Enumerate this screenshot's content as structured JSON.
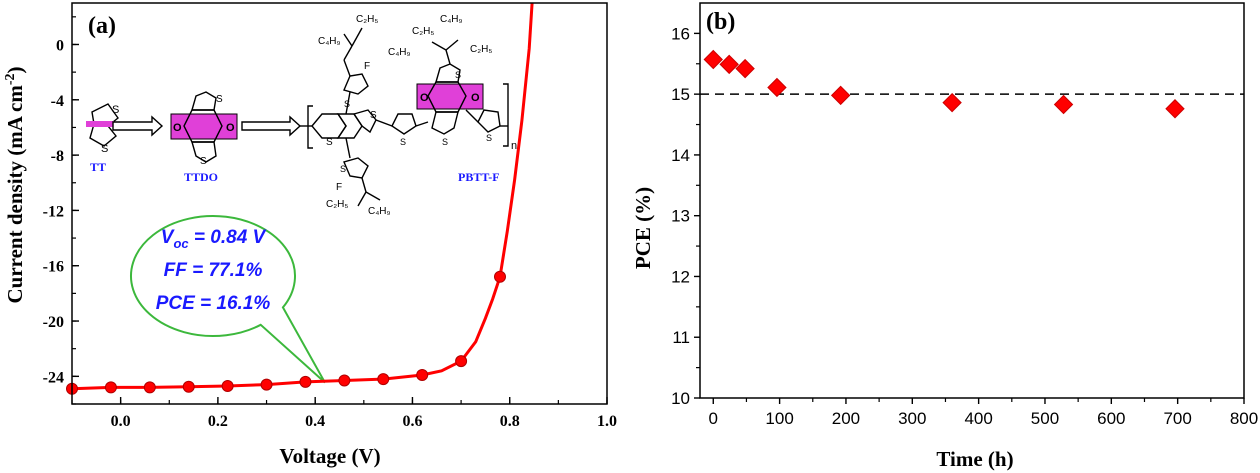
{
  "chart_data": [
    {
      "type": "line",
      "panel_label": "(a)",
      "xlabel": "Voltage (V)",
      "ylabel": "Current density (mA cm⁻²)",
      "ylabel_main": "Current density (mA cm",
      "ylabel_sup": "-2",
      "ylabel_close": ")",
      "xlim": [
        -0.1,
        1.0
      ],
      "ylim": [
        -26,
        3
      ],
      "xticks": [
        0.0,
        0.2,
        0.4,
        0.6,
        0.8,
        1.0
      ],
      "xtick_labels": [
        "0.0",
        "0.2",
        "0.4",
        "0.6",
        "0.8",
        "1.0"
      ],
      "yticks": [
        0,
        -4,
        -8,
        -12,
        -16,
        -20,
        -24
      ],
      "ytick_labels": [
        "0",
        "-4",
        "-8",
        "-12",
        "-16",
        "-20",
        "-24"
      ],
      "series": [
        {
          "curve_x": [
            -0.1,
            -0.02,
            0.06,
            0.14,
            0.22,
            0.3,
            0.38,
            0.46,
            0.54,
            0.62,
            0.66,
            0.7,
            0.73,
            0.75,
            0.765,
            0.78,
            0.795,
            0.81,
            0.825,
            0.84,
            0.846
          ],
          "curve_y": [
            -24.9,
            -24.8,
            -24.8,
            -24.75,
            -24.7,
            -24.6,
            -24.4,
            -24.3,
            -24.2,
            -23.9,
            -23.6,
            -22.9,
            -21.5,
            -19.8,
            -18.4,
            -16.8,
            -13.5,
            -9.8,
            -5.5,
            -0.3,
            3.0
          ],
          "x": [
            -0.1,
            -0.02,
            0.06,
            0.14,
            0.22,
            0.3,
            0.38,
            0.46,
            0.54,
            0.62,
            0.7,
            0.78
          ],
          "y": [
            -24.9,
            -24.8,
            -24.8,
            -24.75,
            -24.7,
            -24.6,
            -24.4,
            -24.3,
            -24.2,
            -23.9,
            -22.9,
            -16.8
          ],
          "color": "#ff0000"
        }
      ],
      "annotation": {
        "line1_main": "V",
        "line1_sub": "oc",
        "line1_rest": " = 0.84 V",
        "line2": "FF = 77.1%",
        "line3": "PCE = 16.1%",
        "text_color": "#1a1aff",
        "border_color": "#3cb83c"
      },
      "structure_labels": {
        "tt": "TT",
        "ttdo": "TTDO",
        "pbtt": "PBTT-F",
        "s": "S",
        "o": "O",
        "f": "F",
        "n": "n",
        "c4h9": "C₄H₉",
        "c2h5": "C₂H₅",
        "label_color": "#1a1aff",
        "highlight_color": "#e040d8"
      }
    },
    {
      "type": "scatter",
      "panel_label": "(b)",
      "xlabel": "Time (h)",
      "ylabel": "PCE (%)",
      "xlim": [
        -20,
        800
      ],
      "ylim": [
        10,
        16.5
      ],
      "xticks": [
        0,
        100,
        200,
        300,
        400,
        500,
        600,
        700,
        800
      ],
      "xtick_labels": [
        "0",
        "100",
        "200",
        "300",
        "400",
        "500",
        "600",
        "700",
        "800"
      ],
      "yticks": [
        10,
        11,
        12,
        13,
        14,
        15,
        16
      ],
      "ytick_labels": [
        "10",
        "11",
        "12",
        "13",
        "14",
        "15",
        "16"
      ],
      "reference_line": 15,
      "series": [
        {
          "x": [
            0,
            24,
            48,
            96,
            192,
            360,
            528,
            696
          ],
          "y": [
            15.57,
            15.49,
            15.42,
            15.11,
            14.98,
            14.86,
            14.83,
            14.76
          ],
          "marker": "diamond",
          "color": "#ff0000"
        }
      ]
    }
  ]
}
